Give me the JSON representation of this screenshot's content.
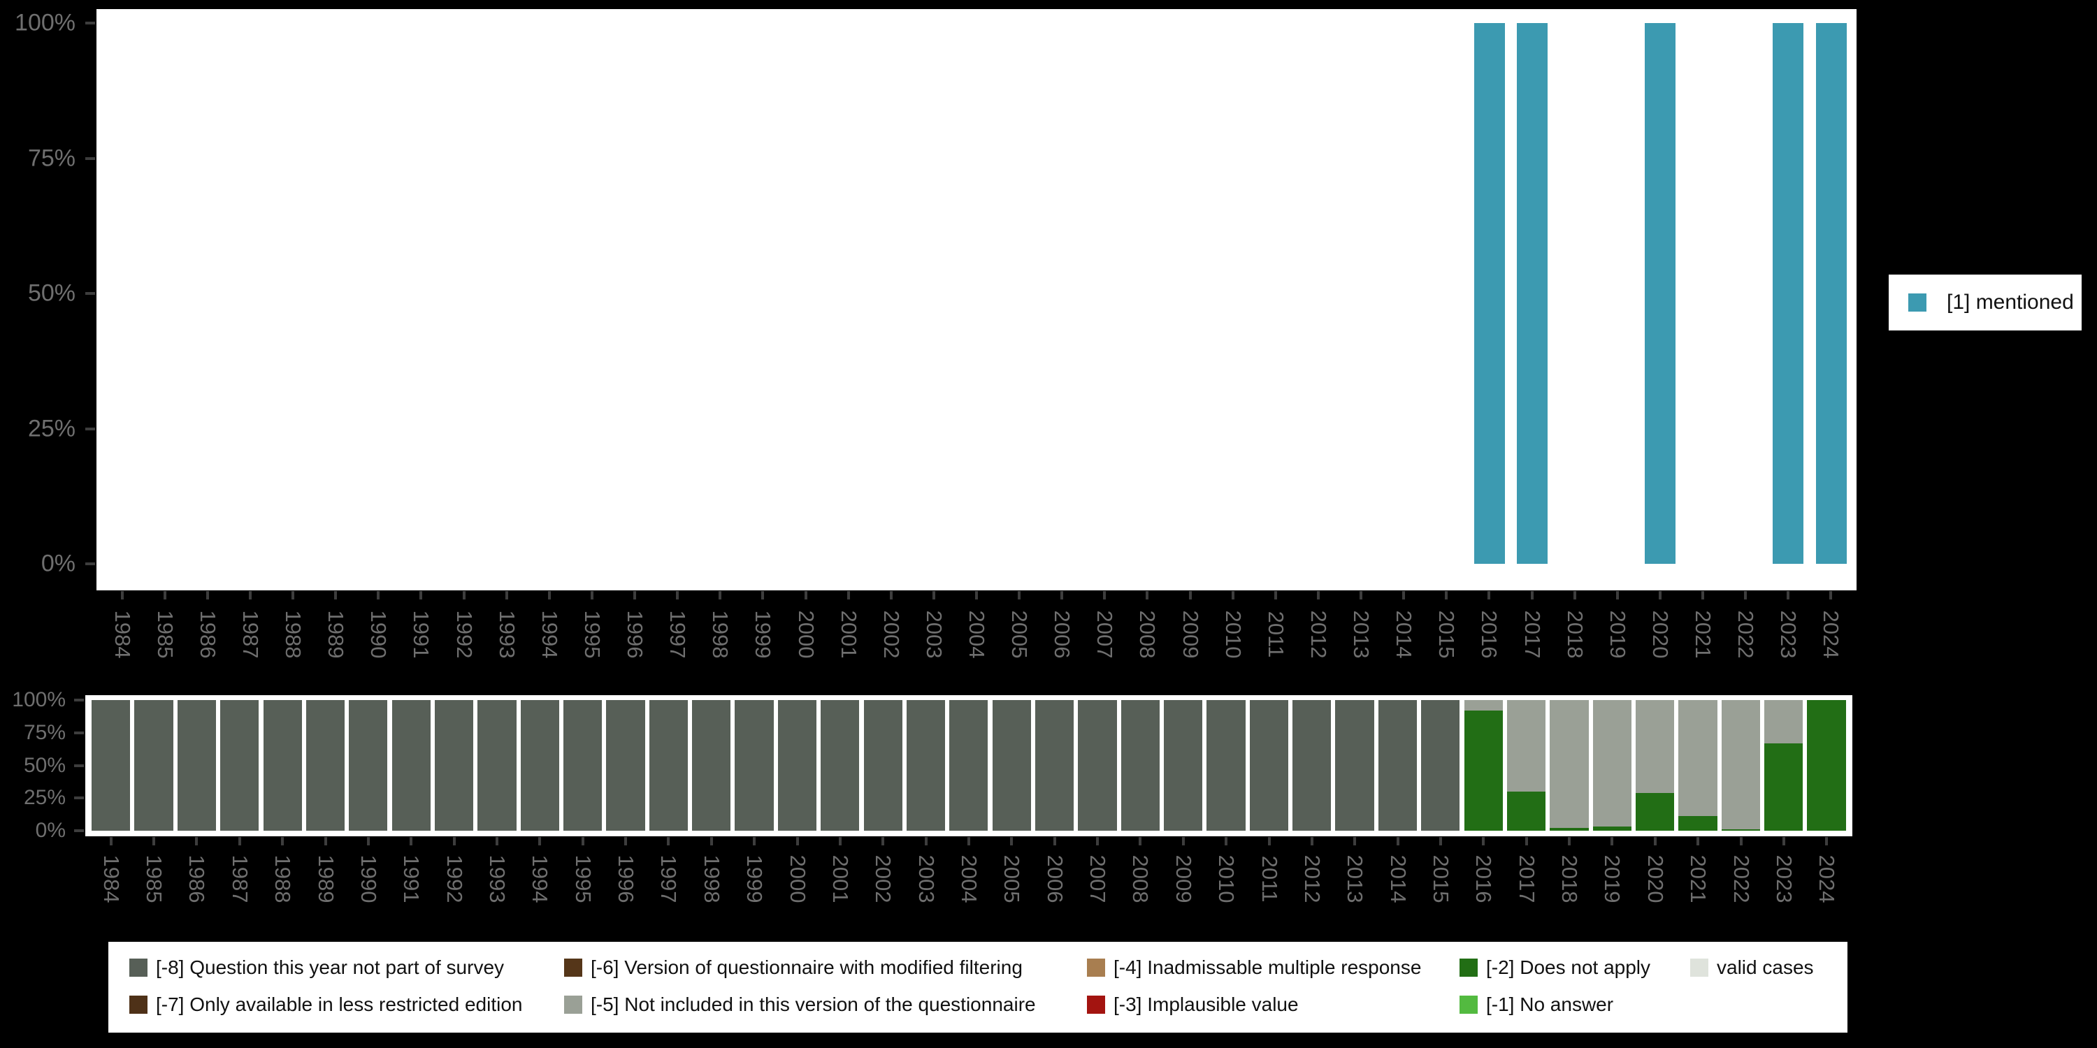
{
  "colors": {
    "background": "#000000",
    "panel": "#ffffff",
    "axis_text": "#6f6f6f",
    "tick": "#3d3d3d",
    "legend_text": "#111111",
    "mentioned_teal": "#3c9ab1",
    "cat_minus8": "#575f57",
    "cat_minus7": "#4e3118",
    "cat_minus6": "#553619",
    "cat_minus5": "#9aa096",
    "cat_minus4": "#a87e50",
    "cat_minus3": "#a31410",
    "cat_minus2": "#226e15",
    "cat_minus1": "#53ba40",
    "valid_cases": "#dfe3dc"
  },
  "chart_data": [
    {
      "id": "value-distribution-by-year",
      "type": "bar",
      "title": "",
      "xlabel": "",
      "ylabel": "",
      "ylim": [
        0,
        100
      ],
      "grid": false,
      "legend_position": "right",
      "x": [
        1984,
        1985,
        1986,
        1987,
        1988,
        1989,
        1990,
        1991,
        1992,
        1993,
        1994,
        1995,
        1996,
        1997,
        1998,
        1999,
        2000,
        2001,
        2002,
        2003,
        2004,
        2005,
        2006,
        2007,
        2008,
        2009,
        2010,
        2011,
        2012,
        2013,
        2014,
        2015,
        2016,
        2017,
        2018,
        2019,
        2020,
        2021,
        2022,
        2023,
        2024
      ],
      "ytick_labels": [
        "100%",
        "75%",
        "50%",
        "25%",
        "0%"
      ],
      "ytick_values": [
        100,
        75,
        50,
        25,
        0
      ],
      "series": [
        {
          "name": "[1] mentioned",
          "color": "#3c9ab1",
          "values_pct": [
            0,
            0,
            0,
            0,
            0,
            0,
            0,
            0,
            0,
            0,
            0,
            0,
            0,
            0,
            0,
            0,
            0,
            0,
            0,
            0,
            0,
            0,
            0,
            0,
            0,
            0,
            0,
            0,
            0,
            0,
            0,
            0,
            100,
            100,
            0,
            0,
            100,
            0,
            0,
            100,
            100
          ]
        }
      ],
      "bar_width_frac": 0.72
    },
    {
      "id": "missing-values-by-year",
      "type": "stacked-bar",
      "title": "",
      "xlabel": "",
      "ylabel": "",
      "ylim": [
        0,
        100
      ],
      "grid": false,
      "legend_position": "bottom",
      "x": [
        1984,
        1985,
        1986,
        1987,
        1988,
        1989,
        1990,
        1991,
        1992,
        1993,
        1994,
        1995,
        1996,
        1997,
        1998,
        1999,
        2000,
        2001,
        2002,
        2003,
        2004,
        2005,
        2006,
        2007,
        2008,
        2009,
        2010,
        2011,
        2012,
        2013,
        2014,
        2015,
        2016,
        2017,
        2018,
        2019,
        2020,
        2021,
        2022,
        2023,
        2024
      ],
      "ytick_labels": [
        "100%",
        "75%",
        "50%",
        "25%",
        "0%"
      ],
      "ytick_values": [
        100,
        75,
        50,
        25,
        0
      ],
      "stack_order": "bottom-to-top",
      "series": [
        {
          "name": "[-2] Does not apply",
          "color": "#226e15",
          "values_pct": [
            0,
            0,
            0,
            0,
            0,
            0,
            0,
            0,
            0,
            0,
            0,
            0,
            0,
            0,
            0,
            0,
            0,
            0,
            0,
            0,
            0,
            0,
            0,
            0,
            0,
            0,
            0,
            0,
            0,
            0,
            0,
            0,
            92,
            30,
            2,
            3,
            29,
            11,
            1,
            67,
            100
          ]
        },
        {
          "name": "[-5] Not included in this version of the questionnaire",
          "color": "#9aa096",
          "values_pct": [
            0,
            0,
            0,
            0,
            0,
            0,
            0,
            0,
            0,
            0,
            0,
            0,
            0,
            0,
            0,
            0,
            0,
            0,
            0,
            0,
            0,
            0,
            0,
            0,
            0,
            0,
            0,
            0,
            0,
            0,
            0,
            0,
            8,
            70,
            98,
            97,
            71,
            89,
            99,
            33,
            0
          ]
        },
        {
          "name": "[-8] Question this year not part of survey",
          "color": "#575f57",
          "values_pct": [
            100,
            100,
            100,
            100,
            100,
            100,
            100,
            100,
            100,
            100,
            100,
            100,
            100,
            100,
            100,
            100,
            100,
            100,
            100,
            100,
            100,
            100,
            100,
            100,
            100,
            100,
            100,
            100,
            100,
            100,
            100,
            100,
            0,
            0,
            0,
            0,
            0,
            0,
            0,
            0,
            0
          ]
        }
      ],
      "bar_width_frac": 0.9
    }
  ],
  "legend_top": {
    "label": "[1] mentioned",
    "color": "#3c9ab1"
  },
  "legend_bottom": {
    "columns": [
      [
        {
          "label": "[-8] Question this year not part of survey",
          "color": "#575f57"
        },
        {
          "label": "[-7] Only available in less restricted edition",
          "color": "#4e3118"
        }
      ],
      [
        {
          "label": "[-6] Version of questionnaire with modified filtering",
          "color": "#553619"
        },
        {
          "label": "[-5] Not included in this version of the questionnaire",
          "color": "#9aa096"
        }
      ],
      [
        {
          "label": "[-4] Inadmissable multiple response",
          "color": "#a87e50"
        },
        {
          "label": "[-3] Implausible value",
          "color": "#a31410"
        }
      ],
      [
        {
          "label": "[-2] Does not apply",
          "color": "#226e15"
        },
        {
          "label": "[-1] No answer",
          "color": "#53ba40"
        }
      ],
      [
        {
          "label": "valid cases",
          "color": "#dfe3dc"
        }
      ]
    ]
  }
}
